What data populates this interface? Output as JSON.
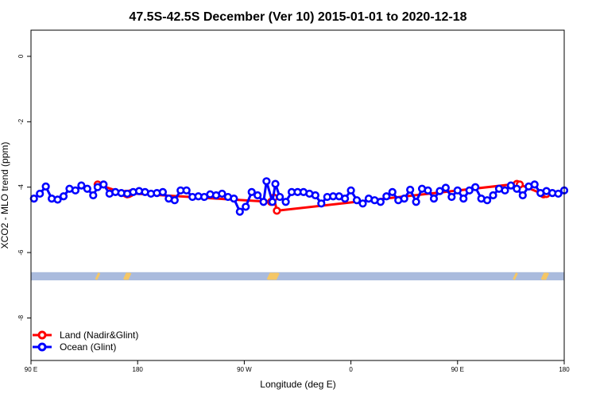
{
  "chart_data": {
    "type": "line",
    "title": "47.5S-42.5S December (Ver 10)   2015-01-01 to 2020-12-18",
    "xlabel": "Longitude (deg E)",
    "ylabel": "XCO2 - MLO trend (ppm)",
    "xlim": [
      90,
      450
    ],
    "ylim": [
      -9.3,
      0.8
    ],
    "x_ticks": [
      {
        "value": 90,
        "label": "90 E"
      },
      {
        "value": 162,
        "label": "180"
      },
      {
        "value": 234,
        "label": "90 W"
      },
      {
        "value": 306,
        "label": "0"
      },
      {
        "value": 378,
        "label": "90 E"
      },
      {
        "value": 450,
        "label": "180"
      }
    ],
    "y_ticks": [
      0,
      -2,
      -4,
      -6,
      -8
    ],
    "grid": false,
    "legend_position": "bottom-left",
    "series": [
      {
        "name": "Land (Nadir&Glint)",
        "color": "#ff0000",
        "points": [
          [
            135,
            -3.92
          ],
          [
            154,
            -4.2
          ],
          [
            155,
            -4.22
          ],
          [
            156,
            -4.21
          ],
          [
            157,
            -4.19
          ],
          [
            252,
            -4.45
          ],
          [
            254,
            -4.32
          ],
          [
            256,
            -4.72
          ],
          [
            418,
            -3.9
          ],
          [
            420,
            -3.92
          ],
          [
            436,
            -4.22
          ],
          [
            438,
            -4.21
          ]
        ]
      },
      {
        "name": "Ocean (Glint)",
        "color": "#0000ff",
        "points": [
          [
            92,
            -4.35
          ],
          [
            96,
            -4.2
          ],
          [
            100,
            -3.98
          ],
          [
            104,
            -4.35
          ],
          [
            108,
            -4.38
          ],
          [
            112,
            -4.28
          ],
          [
            116,
            -4.05
          ],
          [
            120,
            -4.1
          ],
          [
            124,
            -3.95
          ],
          [
            128,
            -4.05
          ],
          [
            132,
            -4.25
          ],
          [
            135,
            -4.0
          ],
          [
            139,
            -3.92
          ],
          [
            143,
            -4.2
          ],
          [
            147,
            -4.15
          ],
          [
            151,
            -4.18
          ],
          [
            155,
            -4.2
          ],
          [
            159,
            -4.15
          ],
          [
            163,
            -4.12
          ],
          [
            167,
            -4.15
          ],
          [
            171,
            -4.2
          ],
          [
            175,
            -4.18
          ],
          [
            179,
            -4.15
          ],
          [
            183,
            -4.35
          ],
          [
            187,
            -4.4
          ],
          [
            191,
            -4.1
          ],
          [
            195,
            -4.1
          ],
          [
            199,
            -4.3
          ],
          [
            203,
            -4.28
          ],
          [
            207,
            -4.3
          ],
          [
            211,
            -4.22
          ],
          [
            215,
            -4.25
          ],
          [
            219,
            -4.2
          ],
          [
            223,
            -4.3
          ],
          [
            227,
            -4.35
          ],
          [
            231,
            -4.75
          ],
          [
            235,
            -4.6
          ],
          [
            239,
            -4.15
          ],
          [
            243,
            -4.25
          ],
          [
            247,
            -4.45
          ],
          [
            249,
            -3.82
          ],
          [
            253,
            -4.45
          ],
          [
            255,
            -3.9
          ],
          [
            258,
            -4.3
          ],
          [
            262,
            -4.45
          ],
          [
            266,
            -4.15
          ],
          [
            270,
            -4.15
          ],
          [
            274,
            -4.15
          ],
          [
            278,
            -4.2
          ],
          [
            282,
            -4.25
          ],
          [
            286,
            -4.5
          ],
          [
            290,
            -4.3
          ],
          [
            294,
            -4.28
          ],
          [
            298,
            -4.28
          ],
          [
            302,
            -4.35
          ],
          [
            306,
            -4.1
          ],
          [
            310,
            -4.4
          ],
          [
            314,
            -4.5
          ],
          [
            318,
            -4.35
          ],
          [
            322,
            -4.4
          ],
          [
            326,
            -4.45
          ],
          [
            330,
            -4.28
          ],
          [
            334,
            -4.15
          ],
          [
            338,
            -4.4
          ],
          [
            342,
            -4.35
          ],
          [
            346,
            -4.08
          ],
          [
            350,
            -4.45
          ],
          [
            354,
            -4.05
          ],
          [
            358,
            -4.1
          ],
          [
            362,
            -4.35
          ],
          [
            366,
            -4.12
          ],
          [
            370,
            -4.02
          ],
          [
            374,
            -4.3
          ],
          [
            378,
            -4.1
          ],
          [
            382,
            -4.35
          ],
          [
            386,
            -4.1
          ],
          [
            390,
            -4.0
          ],
          [
            394,
            -4.35
          ],
          [
            398,
            -4.4
          ],
          [
            402,
            -4.25
          ],
          [
            406,
            -4.05
          ],
          [
            410,
            -4.1
          ],
          [
            414,
            -3.95
          ],
          [
            418,
            -4.05
          ],
          [
            422,
            -4.25
          ],
          [
            426,
            -3.98
          ],
          [
            430,
            -3.92
          ],
          [
            434,
            -4.18
          ],
          [
            438,
            -4.12
          ],
          [
            442,
            -4.18
          ],
          [
            446,
            -4.2
          ],
          [
            450,
            -4.1
          ]
        ]
      }
    ],
    "band": {
      "y_range": [
        -6.85,
        -6.6
      ],
      "color": "#aabbdd",
      "marks_color": "#f5c766",
      "marks_lon": [
        135,
        154,
        155,
        156,
        251,
        252,
        253,
        254,
        255,
        256,
        417,
        436,
        437,
        438
      ]
    }
  }
}
